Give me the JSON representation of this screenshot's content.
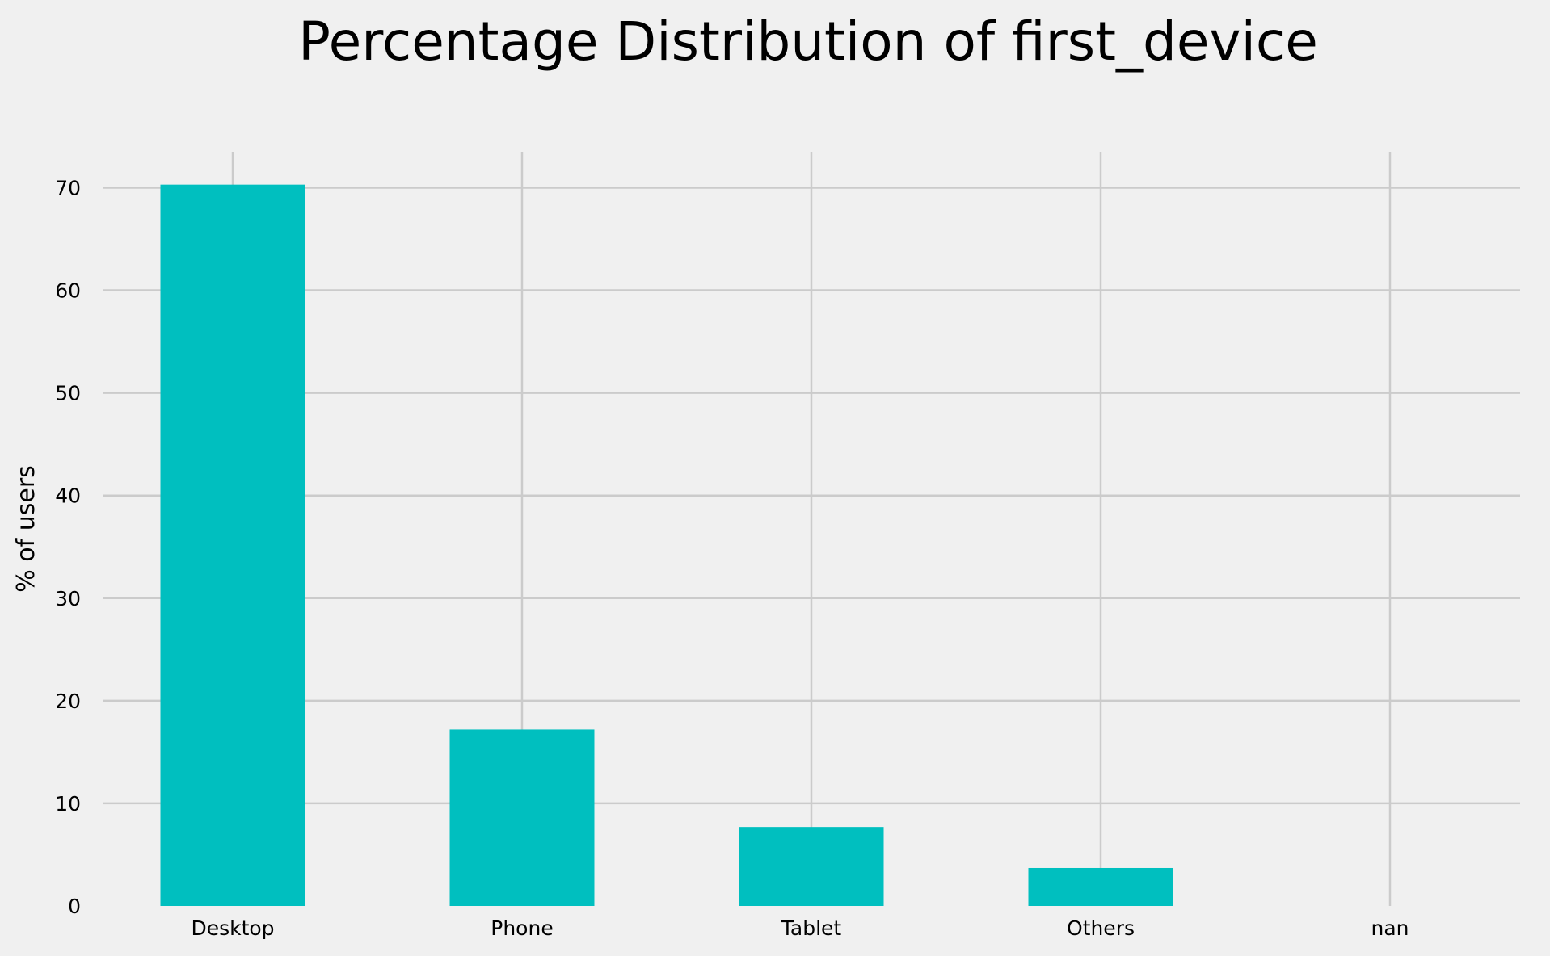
{
  "chart_data": {
    "type": "bar",
    "title": "Percentage Distribution of first_device",
    "xlabel": "",
    "ylabel": "% of users",
    "categories": [
      "Desktop",
      "Phone",
      "Tablet",
      "Others",
      "nan"
    ],
    "values": [
      70.3,
      17.2,
      7.7,
      3.7,
      0
    ],
    "ylim": [
      0,
      73.5
    ],
    "yticks": [
      0,
      10,
      20,
      30,
      40,
      50,
      60,
      70
    ],
    "grid": true,
    "bar_color": "#00bfbf",
    "background_color": "#f0f0f0",
    "grid_color": "#cbcbcb"
  }
}
